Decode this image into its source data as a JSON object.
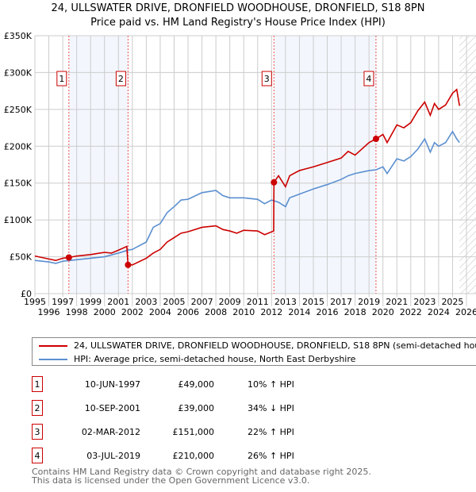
{
  "chart_data": {
    "type": "line",
    "title": "24, ULLSWATER DRIVE, DRONFIELD WOODHOUSE, DRONFIELD, S18 8PN",
    "subtitle": "Price paid vs. HM Land Registry's House Price Index (HPI)",
    "xlim": [
      1995,
      2026
    ],
    "ylim": [
      0,
      350000
    ],
    "yticks": [
      {
        "v": 0,
        "l": "£0"
      },
      {
        "v": 50000,
        "l": "£50K"
      },
      {
        "v": 100000,
        "l": "£100K"
      },
      {
        "v": 150000,
        "l": "£150K"
      },
      {
        "v": 200000,
        "l": "£200K"
      },
      {
        "v": 250000,
        "l": "£250K"
      },
      {
        "v": 300000,
        "l": "£300K"
      },
      {
        "v": 350000,
        "l": "£350K"
      }
    ],
    "xticks": [
      "1995",
      "1996",
      "1997",
      "1998",
      "1999",
      "2000",
      "2001",
      "2002",
      "2003",
      "2004",
      "2005",
      "2006",
      "2007",
      "2008",
      "2009",
      "2010",
      "2011",
      "2012",
      "2013",
      "2014",
      "2015",
      "2016",
      "2017",
      "2018",
      "2019",
      "2020",
      "2021",
      "2022",
      "2023",
      "2024",
      "2025",
      "2026"
    ],
    "grid": true,
    "series": [
      {
        "name": "24, ULLSWATER DRIVE, DRONFIELD WOODHOUSE, DRONFIELD, S18 8PN (semi-detached house)",
        "color": "#cc0000",
        "x": [
          1995,
          1996,
          1996.5,
          1997,
          1997.44,
          1998,
          1999,
          2000,
          2000.5,
          2001,
          2001.6,
          2001.69,
          2002,
          2003,
          2003.5,
          2004,
          2004.5,
          2005,
          2005.5,
          2006,
          2007,
          2008,
          2008.5,
          2009,
          2009.5,
          2010,
          2011,
          2011.5,
          2012.15,
          2012.17,
          2012.5,
          2013,
          2013.3,
          2014,
          2015,
          2016,
          2017,
          2017.5,
          2018,
          2019,
          2019.5,
          2020,
          2020.3,
          2021,
          2021.5,
          2022,
          2022.5,
          2023,
          2023.4,
          2023.7,
          2024,
          2024.5,
          2025,
          2025.3,
          2025.5
        ],
        "y": [
          51000,
          47000,
          45000,
          48000,
          49000,
          51000,
          53000,
          56000,
          55000,
          59000,
          64000,
          39000,
          39000,
          48000,
          55000,
          60000,
          70000,
          76000,
          82000,
          84000,
          90000,
          92000,
          87000,
          85000,
          82000,
          86000,
          85000,
          80000,
          85000,
          151000,
          160000,
          145000,
          160000,
          167000,
          172000,
          178000,
          184000,
          193000,
          188000,
          205000,
          210000,
          216000,
          205000,
          229000,
          225000,
          232000,
          248000,
          260000,
          242000,
          258000,
          250000,
          256000,
          272000,
          277000,
          255000
        ]
      },
      {
        "name": "HPI: Average price, semi-detached house, North East Derbyshire",
        "color": "#5b8fd0",
        "x": [
          1995,
          1996,
          1996.5,
          1997,
          1998,
          1999,
          2000,
          2001,
          2001.7,
          2002,
          2003,
          2003.5,
          2004,
          2004.5,
          2005,
          2005.5,
          2006,
          2007,
          2008,
          2008.5,
          2009,
          2010,
          2011,
          2011.5,
          2012,
          2012.5,
          2013,
          2013.3,
          2014,
          2015,
          2016,
          2017,
          2017.5,
          2018,
          2019,
          2019.5,
          2020,
          2020.3,
          2021,
          2021.5,
          2022,
          2022.5,
          2023,
          2023.4,
          2023.7,
          2024,
          2024.5,
          2025,
          2025.3,
          2025.5
        ],
        "y": [
          45000,
          43000,
          41000,
          44000,
          46000,
          48000,
          50000,
          55000,
          59000,
          60000,
          70000,
          90000,
          95000,
          110000,
          118000,
          127000,
          128000,
          137000,
          140000,
          133000,
          130000,
          130000,
          128000,
          122000,
          127000,
          124000,
          118000,
          130000,
          135000,
          142000,
          148000,
          155000,
          160000,
          163000,
          167000,
          168000,
          172000,
          163000,
          183000,
          180000,
          186000,
          196000,
          210000,
          192000,
          205000,
          200000,
          205000,
          220000,
          210000,
          205000
        ]
      }
    ],
    "sales": [
      {
        "label": "1",
        "x": 1997.44,
        "y": 49000,
        "date": "10-JUN-1997",
        "price": "£49,000",
        "hpi": "10% ↑ HPI"
      },
      {
        "label": "2",
        "x": 2001.69,
        "y": 39000,
        "date": "10-SEP-2001",
        "price": "£39,000",
        "hpi": "34% ↓ HPI"
      },
      {
        "label": "3",
        "x": 2012.17,
        "y": 151000,
        "date": "02-MAR-2012",
        "price": "£151,000",
        "hpi": "22% ↑ HPI"
      },
      {
        "label": "4",
        "x": 2019.5,
        "y": 210000,
        "date": "03-JUL-2019",
        "price": "£210,000",
        "hpi": "26% ↑ HPI"
      }
    ],
    "forecast_start": 2025.5
  },
  "footer": {
    "line1": "Contains HM Land Registry data © Crown copyright and database right 2025.",
    "line2": "This data is licensed under the Open Government Licence v3.0."
  }
}
